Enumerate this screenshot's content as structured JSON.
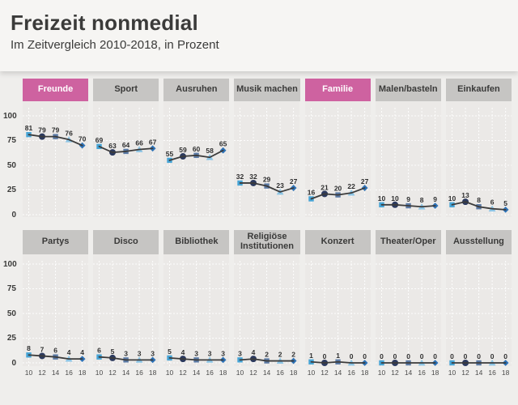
{
  "header": {
    "title": "Freizeit nonmedial",
    "subtitle": "Im Zeitvergleich 2010-2018, in Prozent"
  },
  "chart_data": {
    "type": "line",
    "layout": "small-multiples, 2 rows x 7 panels, shared axes",
    "x": [
      "10",
      "12",
      "14",
      "16",
      "18"
    ],
    "x_meaning": "survey years 2010, 2012, 2014, 2016, 2018",
    "ylim": [
      0,
      100
    ],
    "yticks": [
      0,
      25,
      50,
      75,
      100
    ],
    "grid": true,
    "unit": "Prozent",
    "rows": [
      {
        "show_x_labels": false,
        "panels": [
          {
            "label": "Freunde",
            "highlight": true,
            "values": [
              81,
              79,
              79,
              76,
              70
            ]
          },
          {
            "label": "Sport",
            "highlight": false,
            "values": [
              69,
              63,
              64,
              66,
              67
            ]
          },
          {
            "label": "Ausruhen",
            "highlight": false,
            "values": [
              55,
              59,
              60,
              58,
              65
            ]
          },
          {
            "label": "Musik machen",
            "highlight": false,
            "values": [
              32,
              32,
              29,
              23,
              27
            ]
          },
          {
            "label": "Familie",
            "highlight": true,
            "values": [
              16,
              21,
              20,
              22,
              27
            ]
          },
          {
            "label": "Malen/basteln",
            "highlight": false,
            "values": [
              10,
              10,
              9,
              8,
              9
            ]
          },
          {
            "label": "Einkaufen",
            "highlight": false,
            "values": [
              10,
              13,
              8,
              6,
              5
            ]
          }
        ]
      },
      {
        "show_x_labels": true,
        "panels": [
          {
            "label": "Partys",
            "highlight": false,
            "values": [
              8,
              7,
              6,
              4,
              4
            ]
          },
          {
            "label": "Disco",
            "highlight": false,
            "values": [
              6,
              5,
              3,
              3,
              3
            ]
          },
          {
            "label": "Bibliothek",
            "highlight": false,
            "values": [
              5,
              4,
              3,
              3,
              3
            ]
          },
          {
            "label": "Religiöse Institutionen",
            "highlight": false,
            "values": [
              3,
              4,
              2,
              2,
              2
            ]
          },
          {
            "label": "Konzert",
            "highlight": false,
            "values": [
              1,
              0,
              1,
              0,
              0
            ]
          },
          {
            "label": "Theater/Oper",
            "highlight": false,
            "values": [
              0,
              0,
              0,
              0,
              0
            ]
          },
          {
            "label": "Ausstellung",
            "highlight": false,
            "values": [
              0,
              0,
              0,
              0,
              0
            ]
          }
        ]
      }
    ],
    "markers_by_year": [
      {
        "year": "10",
        "shape": "square",
        "color": "#46a4d6"
      },
      {
        "year": "12",
        "shape": "circle",
        "color": "#2c3a5e"
      },
      {
        "year": "14",
        "shape": "square",
        "color": "#5b7aa5"
      },
      {
        "year": "16",
        "shape": "triangle",
        "color": "#8cc5e6"
      },
      {
        "year": "18",
        "shape": "diamond",
        "color": "#2d72b7"
      }
    ],
    "colors": {
      "highlight_tab": "#ce62a0",
      "tab": "#c6c5c3",
      "line": "#3b3b3b",
      "panel_background": "#ebe9e7",
      "page_background": "#efeeec",
      "header_background": "#f6f5f3"
    }
  }
}
